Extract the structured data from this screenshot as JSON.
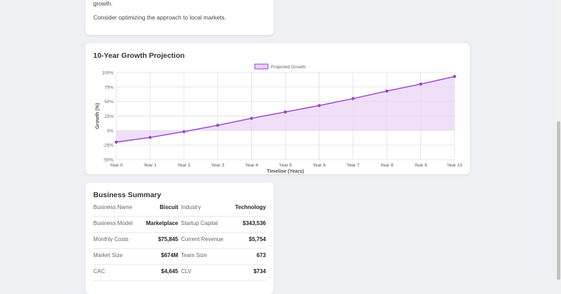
{
  "analysis_card": {
    "partial_line": "growth.",
    "recommendation": "Consider optimizing the approach to local markets."
  },
  "projection": {
    "title": "10-Year Growth Projection",
    "chart_data": {
      "type": "line",
      "title": "",
      "xlabel": "Timeline (Years)",
      "ylabel": "Growth (%)",
      "categories": [
        "Year 0",
        "Year 1",
        "Year 2",
        "Year 3",
        "Year 4",
        "Year 5",
        "Year 6",
        "Year 7",
        "Year 8",
        "Year 9",
        "Year 10"
      ],
      "series": [
        {
          "name": "Projected Growth",
          "values": [
            -20,
            -12,
            -2,
            9,
            21,
            32,
            43,
            55,
            68,
            80,
            93
          ]
        }
      ],
      "ylim": [
        -50,
        100
      ],
      "yticks": [
        -50,
        -25,
        0,
        25,
        50,
        75,
        100
      ],
      "ytick_labels": [
        "-50%",
        "-25%",
        "0%",
        "25%",
        "50%",
        "75%",
        "100%"
      ],
      "fill": "area-to-zero",
      "grid": true,
      "legend_position": "top-center",
      "line_color": "#9c3fc9",
      "fill_color": "#e8d2f7"
    }
  },
  "summary": {
    "title": "Business Summary",
    "rows": [
      {
        "l1": "Business Name",
        "v1": "Biscuit",
        "l2": "Industry",
        "v2": "Technology"
      },
      {
        "l1": "Business Model",
        "v1": "Marketplace",
        "l2": "Startup Capital",
        "v2": "$343,536"
      },
      {
        "l1": "Monthly Costs",
        "v1": "$75,845",
        "l2": "Current Revenue",
        "v2": "$5,754"
      },
      {
        "l1": "Market Size",
        "v1": "$674M",
        "l2": "Team Size",
        "v2": "673"
      },
      {
        "l1": "CAC",
        "v1": "$4,645",
        "l2": "CLV",
        "v2": "$734"
      }
    ]
  }
}
